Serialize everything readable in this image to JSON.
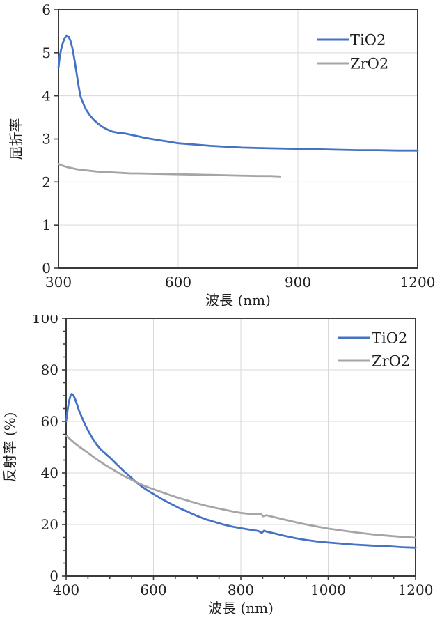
{
  "colors": {
    "tio2_blue": "#4472C4",
    "zro2_gray": "#A5A5A5",
    "gridline": "#D9D9D9",
    "axis": "#3A3A3A",
    "text": "#1F1F1F",
    "background": "#FFFFFF"
  },
  "chart_data": [
    {
      "id": "refractive-index-chart",
      "type": "line",
      "title": "",
      "xlabel": "波長 (nm)",
      "ylabel": "屈折率",
      "xlim": [
        300,
        1200
      ],
      "ylim": [
        0,
        6
      ],
      "xticks": [
        300,
        600,
        900,
        1200
      ],
      "yticks": [
        0,
        1,
        2,
        3,
        4,
        5,
        6
      ],
      "x_minor_step": 0,
      "y_minor_step": 0,
      "grid": true,
      "legend_position": "top-right",
      "legend": [
        "TiO2",
        "ZrO2"
      ],
      "series": [
        {
          "name": "TiO2",
          "color": "#4472C4",
          "points": [
            [
              300,
              4.65
            ],
            [
              303,
              4.9
            ],
            [
              306,
              5.05
            ],
            [
              310,
              5.2
            ],
            [
              315,
              5.33
            ],
            [
              320,
              5.4
            ],
            [
              325,
              5.38
            ],
            [
              330,
              5.28
            ],
            [
              335,
              5.1
            ],
            [
              340,
              4.85
            ],
            [
              345,
              4.55
            ],
            [
              350,
              4.25
            ],
            [
              355,
              4.0
            ],
            [
              360,
              3.87
            ],
            [
              365,
              3.76
            ],
            [
              370,
              3.67
            ],
            [
              380,
              3.53
            ],
            [
              390,
              3.43
            ],
            [
              400,
              3.35
            ],
            [
              410,
              3.28
            ],
            [
              420,
              3.23
            ],
            [
              435,
              3.17
            ],
            [
              450,
              3.14
            ],
            [
              465,
              3.13
            ],
            [
              480,
              3.1
            ],
            [
              500,
              3.06
            ],
            [
              520,
              3.02
            ],
            [
              540,
              2.99
            ],
            [
              560,
              2.96
            ],
            [
              580,
              2.93
            ],
            [
              600,
              2.9
            ],
            [
              640,
              2.87
            ],
            [
              680,
              2.84
            ],
            [
              720,
              2.82
            ],
            [
              760,
              2.8
            ],
            [
              800,
              2.79
            ],
            [
              850,
              2.78
            ],
            [
              900,
              2.77
            ],
            [
              950,
              2.76
            ],
            [
              1000,
              2.75
            ],
            [
              1050,
              2.74
            ],
            [
              1100,
              2.74
            ],
            [
              1150,
              2.73
            ],
            [
              1200,
              2.73
            ]
          ]
        },
        {
          "name": "ZrO2",
          "color": "#A5A5A5",
          "points": [
            [
              300,
              2.42
            ],
            [
              310,
              2.38
            ],
            [
              320,
              2.35
            ],
            [
              330,
              2.33
            ],
            [
              340,
              2.31
            ],
            [
              350,
              2.29
            ],
            [
              360,
              2.28
            ],
            [
              370,
              2.27
            ],
            [
              380,
              2.26
            ],
            [
              400,
              2.24
            ],
            [
              420,
              2.23
            ],
            [
              440,
              2.22
            ],
            [
              460,
              2.21
            ],
            [
              480,
              2.2
            ],
            [
              500,
              2.2
            ],
            [
              550,
              2.19
            ],
            [
              600,
              2.18
            ],
            [
              650,
              2.17
            ],
            [
              700,
              2.16
            ],
            [
              750,
              2.15
            ],
            [
              800,
              2.14
            ],
            [
              830,
              2.14
            ],
            [
              855,
              2.13
            ]
          ]
        }
      ]
    },
    {
      "id": "reflectance-chart",
      "type": "line",
      "title": "",
      "xlabel": "波長 (nm)",
      "ylabel": "反射率 (%)",
      "xlim": [
        400,
        1200
      ],
      "ylim": [
        0,
        100
      ],
      "xticks": [
        400,
        600,
        800,
        1000,
        1200
      ],
      "yticks": [
        0,
        20,
        40,
        60,
        80,
        100
      ],
      "x_minor_step": 50,
      "y_minor_step": 5,
      "grid": true,
      "legend_position": "top-right",
      "legend": [
        "TiO2",
        "ZrO2"
      ],
      "series": [
        {
          "name": "TiO2",
          "color": "#4472C4",
          "points": [
            [
              400,
              60
            ],
            [
              403,
              64
            ],
            [
              406,
              67.5
            ],
            [
              410,
              70
            ],
            [
              413,
              70.7
            ],
            [
              416,
              70.3
            ],
            [
              420,
              69
            ],
            [
              425,
              66.5
            ],
            [
              430,
              64
            ],
            [
              440,
              60
            ],
            [
              450,
              56.5
            ],
            [
              460,
              53.5
            ],
            [
              470,
              51
            ],
            [
              480,
              49
            ],
            [
              490,
              47.5
            ],
            [
              500,
              46
            ],
            [
              515,
              43.5
            ],
            [
              530,
              41
            ],
            [
              545,
              38.8
            ],
            [
              560,
              36.5
            ],
            [
              575,
              34.5
            ],
            [
              590,
              32.8
            ],
            [
              600,
              31.8
            ],
            [
              620,
              29.8
            ],
            [
              640,
              28
            ],
            [
              660,
              26.3
            ],
            [
              680,
              24.8
            ],
            [
              700,
              23.3
            ],
            [
              720,
              22
            ],
            [
              740,
              21
            ],
            [
              760,
              20
            ],
            [
              780,
              19.2
            ],
            [
              800,
              18.6
            ],
            [
              820,
              18
            ],
            [
              840,
              17.5
            ],
            [
              848,
              16.7
            ],
            [
              853,
              17.6
            ],
            [
              860,
              17.2
            ],
            [
              880,
              16.4
            ],
            [
              900,
              15.6
            ],
            [
              925,
              14.7
            ],
            [
              950,
              14
            ],
            [
              975,
              13.4
            ],
            [
              1000,
              13
            ],
            [
              1030,
              12.6
            ],
            [
              1060,
              12.2
            ],
            [
              1100,
              11.8
            ],
            [
              1140,
              11.5
            ],
            [
              1170,
              11.2
            ],
            [
              1200,
              11
            ]
          ]
        },
        {
          "name": "ZrO2",
          "color": "#A5A5A5",
          "points": [
            [
              400,
              54.5
            ],
            [
              410,
              53
            ],
            [
              420,
              51.5
            ],
            [
              430,
              50.2
            ],
            [
              440,
              49
            ],
            [
              450,
              47.8
            ],
            [
              460,
              46.5
            ],
            [
              470,
              45.3
            ],
            [
              480,
              44.2
            ],
            [
              490,
              43
            ],
            [
              500,
              42
            ],
            [
              515,
              40.5
            ],
            [
              530,
              39
            ],
            [
              545,
              37.8
            ],
            [
              560,
              36.5
            ],
            [
              575,
              35.3
            ],
            [
              590,
              34.3
            ],
            [
              600,
              33.7
            ],
            [
              620,
              32.5
            ],
            [
              640,
              31.3
            ],
            [
              660,
              30.2
            ],
            [
              680,
              29.2
            ],
            [
              700,
              28.2
            ],
            [
              720,
              27.3
            ],
            [
              740,
              26.5
            ],
            [
              760,
              25.8
            ],
            [
              780,
              25.1
            ],
            [
              800,
              24.5
            ],
            [
              820,
              24.1
            ],
            [
              840,
              23.9
            ],
            [
              846,
              24.1
            ],
            [
              851,
              23.2
            ],
            [
              858,
              23.6
            ],
            [
              870,
              23.1
            ],
            [
              890,
              22.3
            ],
            [
              910,
              21.5
            ],
            [
              930,
              20.7
            ],
            [
              950,
              20
            ],
            [
              975,
              19.2
            ],
            [
              1000,
              18.4
            ],
            [
              1030,
              17.7
            ],
            [
              1060,
              17
            ],
            [
              1100,
              16.2
            ],
            [
              1140,
              15.6
            ],
            [
              1170,
              15.2
            ],
            [
              1200,
              14.9
            ]
          ]
        }
      ]
    }
  ]
}
